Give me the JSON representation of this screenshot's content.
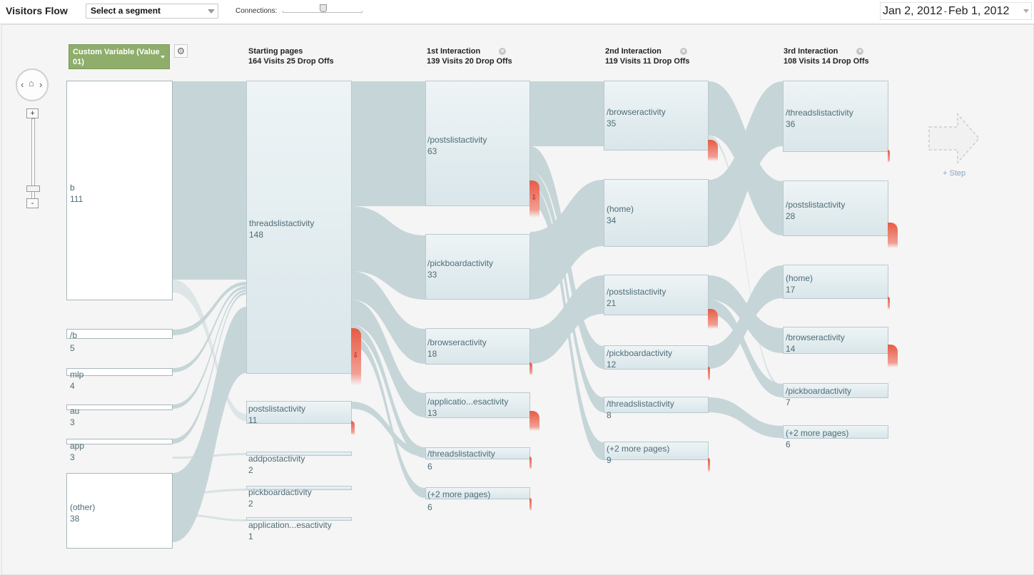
{
  "app": {
    "title": "Visitors Flow"
  },
  "toolbar": {
    "segment_value": "Select a segment",
    "connections_label": "Connections:",
    "date_start": "Jan 2, 2012",
    "date_sep": "-",
    "date_end": "Feb 1, 2012"
  },
  "dimension": {
    "label": "Custom Variable (Value 01)"
  },
  "columns": {
    "starting": {
      "title": "Starting pages",
      "stats": "164 Visits 25 Drop Offs"
    },
    "first": {
      "title": "1st Interaction",
      "stats": "139 Visits 20 Drop Offs"
    },
    "second": {
      "title": "2nd Interaction",
      "stats": "119 Visits 11 Drop Offs"
    },
    "third": {
      "title": "3rd Interaction",
      "stats": "108 Visits 14 Drop Offs"
    }
  },
  "sources": [
    {
      "name": "b",
      "count": "111"
    },
    {
      "name": "/b",
      "count": "5"
    },
    {
      "name": "mlp",
      "count": "4"
    },
    {
      "name": "au",
      "count": "3"
    },
    {
      "name": "app",
      "count": "3"
    },
    {
      "name": "(other)",
      "count": "38"
    }
  ],
  "starting_pages": [
    {
      "name": "threadslistactivity",
      "count": "148"
    },
    {
      "name": "postslistactivity",
      "count": "11"
    },
    {
      "name": "addpostactivity",
      "count": "2"
    },
    {
      "name": "pickboardactivity",
      "count": "2"
    },
    {
      "name": "application...esactivity",
      "count": "1"
    }
  ],
  "first_interaction": [
    {
      "name": "/postslistactivity",
      "count": "63"
    },
    {
      "name": "/pickboardactivity",
      "count": "33"
    },
    {
      "name": "/browseractivity",
      "count": "18"
    },
    {
      "name": "/applicatio...esactivity",
      "count": "13"
    },
    {
      "name": "/threadslistactivity",
      "count": "6"
    },
    {
      "name": "(+2 more pages)",
      "count": "6"
    }
  ],
  "second_interaction": [
    {
      "name": "/browseractivity",
      "count": "35"
    },
    {
      "name": "(home)",
      "count": "34"
    },
    {
      "name": "/postslistactivity",
      "count": "21"
    },
    {
      "name": "/pickboardactivity",
      "count": "12"
    },
    {
      "name": "/threadslistactivity",
      "count": "8"
    },
    {
      "name": "(+2 more pages)",
      "count": "9"
    }
  ],
  "third_interaction": [
    {
      "name": "/threadslistactivity",
      "count": "36"
    },
    {
      "name": "/postslistactivity",
      "count": "28"
    },
    {
      "name": "(home)",
      "count": "17"
    },
    {
      "name": "/browseractivity",
      "count": "14"
    },
    {
      "name": "/pickboardactivity",
      "count": "7"
    },
    {
      "name": "(+2 more pages)",
      "count": "6"
    }
  ],
  "add_step": {
    "label": "+ Step"
  },
  "colors": {
    "link": "#c3d3d6",
    "node_border": "#b9c9cf",
    "dropoff": "#e65b45",
    "dimension": "#8fad6b",
    "node_text": "#4f6c77"
  },
  "icons": [
    "home-icon",
    "left-chevron-icon",
    "right-chevron-icon",
    "gear-icon",
    "close-icon",
    "dropoff-arrow-icon",
    "add-step-arrow-icon"
  ]
}
